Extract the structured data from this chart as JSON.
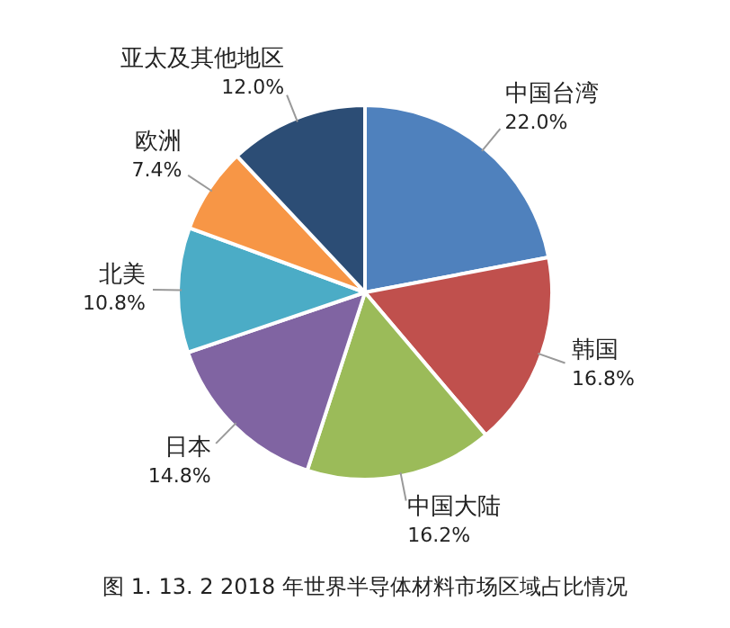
{
  "chart_data": {
    "type": "pie",
    "categories": [
      "中国台湾",
      "韩国",
      "中国大陆",
      "日本",
      "北美",
      "欧洲",
      "亚太及其他地区"
    ],
    "values": [
      22.0,
      16.8,
      16.2,
      14.8,
      10.8,
      7.4,
      12.0
    ],
    "value_labels": [
      "22.0%",
      "16.8%",
      "16.2%",
      "14.8%",
      "10.8%",
      "7.4%",
      "12.0%"
    ],
    "colors": [
      "#4f81bd",
      "#c0504d",
      "#9bbb59",
      "#8064a2",
      "#4bacc6",
      "#f79646",
      "#2c4d75"
    ],
    "legend": false,
    "annotations": [
      "图 1. 13. 2 2018 年世界半导体材料市场区域占比情况"
    ]
  }
}
